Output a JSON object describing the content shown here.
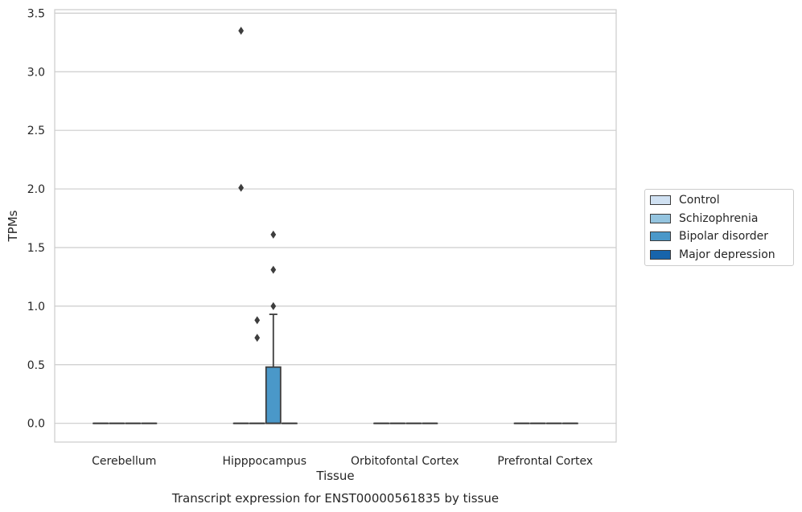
{
  "chart_data": {
    "type": "boxplot",
    "xlabel": "Tissue",
    "ylabel": "TPMs",
    "caption": "Transcript expression for ENST00000561835 by tissue",
    "categories": [
      "Cerebellum",
      "Hipppocampus",
      "Orbitofontal Cortex",
      "Prefrontal Cortex"
    ],
    "ylim": [
      -0.16,
      3.53
    ],
    "yticks": [
      "0.0",
      "0.5",
      "1.0",
      "1.5",
      "2.0",
      "2.5",
      "3.0",
      "3.5"
    ],
    "grid": true,
    "legend_position": "right",
    "series": [
      {
        "name": "Control",
        "color": "#d0e1f2"
      },
      {
        "name": "Schizophrenia",
        "color": "#94c4df"
      },
      {
        "name": "Bipolar disorder",
        "color": "#4a98c9"
      },
      {
        "name": "Major depression",
        "color": "#1764ab"
      }
    ],
    "boxes": [
      {
        "category": "Cerebellum",
        "series": "Control",
        "q1": 0,
        "median": 0,
        "q3": 0,
        "whisker_low": 0,
        "whisker_high": 0,
        "outliers": []
      },
      {
        "category": "Cerebellum",
        "series": "Schizophrenia",
        "q1": 0,
        "median": 0,
        "q3": 0,
        "whisker_low": 0,
        "whisker_high": 0,
        "outliers": []
      },
      {
        "category": "Cerebellum",
        "series": "Bipolar disorder",
        "q1": 0,
        "median": 0,
        "q3": 0,
        "whisker_low": 0,
        "whisker_high": 0,
        "outliers": []
      },
      {
        "category": "Cerebellum",
        "series": "Major depression",
        "q1": 0,
        "median": 0,
        "q3": 0,
        "whisker_low": 0,
        "whisker_high": 0,
        "outliers": []
      },
      {
        "category": "Hipppocampus",
        "series": "Control",
        "q1": 0,
        "median": 0,
        "q3": 0,
        "whisker_low": 0,
        "whisker_high": 0,
        "outliers": [
          3.35,
          2.01
        ]
      },
      {
        "category": "Hipppocampus",
        "series": "Schizophrenia",
        "q1": 0,
        "median": 0,
        "q3": 0,
        "whisker_low": 0,
        "whisker_high": 0,
        "outliers": [
          0.88,
          0.73
        ]
      },
      {
        "category": "Hipppocampus",
        "series": "Bipolar disorder",
        "q1": 0,
        "median": 0,
        "q3": 0.48,
        "whisker_low": 0,
        "whisker_high": 0.93,
        "outliers": [
          1.61,
          1.31,
          1.0
        ]
      },
      {
        "category": "Hipppocampus",
        "series": "Major depression",
        "q1": 0,
        "median": 0,
        "q3": 0,
        "whisker_low": 0,
        "whisker_high": 0,
        "outliers": []
      },
      {
        "category": "Orbitofontal Cortex",
        "series": "Control",
        "q1": 0,
        "median": 0,
        "q3": 0,
        "whisker_low": 0,
        "whisker_high": 0,
        "outliers": []
      },
      {
        "category": "Orbitofontal Cortex",
        "series": "Schizophrenia",
        "q1": 0,
        "median": 0,
        "q3": 0,
        "whisker_low": 0,
        "whisker_high": 0,
        "outliers": []
      },
      {
        "category": "Orbitofontal Cortex",
        "series": "Bipolar disorder",
        "q1": 0,
        "median": 0,
        "q3": 0,
        "whisker_low": 0,
        "whisker_high": 0,
        "outliers": []
      },
      {
        "category": "Orbitofontal Cortex",
        "series": "Major depression",
        "q1": 0,
        "median": 0,
        "q3": 0,
        "whisker_low": 0,
        "whisker_high": 0,
        "outliers": []
      },
      {
        "category": "Prefrontal Cortex",
        "series": "Control",
        "q1": 0,
        "median": 0,
        "q3": 0,
        "whisker_low": 0,
        "whisker_high": 0,
        "outliers": []
      },
      {
        "category": "Prefrontal Cortex",
        "series": "Schizophrenia",
        "q1": 0,
        "median": 0,
        "q3": 0,
        "whisker_low": 0,
        "whisker_high": 0,
        "outliers": []
      },
      {
        "category": "Prefrontal Cortex",
        "series": "Bipolar disorder",
        "q1": 0,
        "median": 0,
        "q3": 0,
        "whisker_low": 0,
        "whisker_high": 0,
        "outliers": []
      },
      {
        "category": "Prefrontal Cortex",
        "series": "Major depression",
        "q1": 0,
        "median": 0,
        "q3": 0,
        "whisker_low": 0,
        "whisker_high": 0,
        "outliers": []
      }
    ]
  }
}
